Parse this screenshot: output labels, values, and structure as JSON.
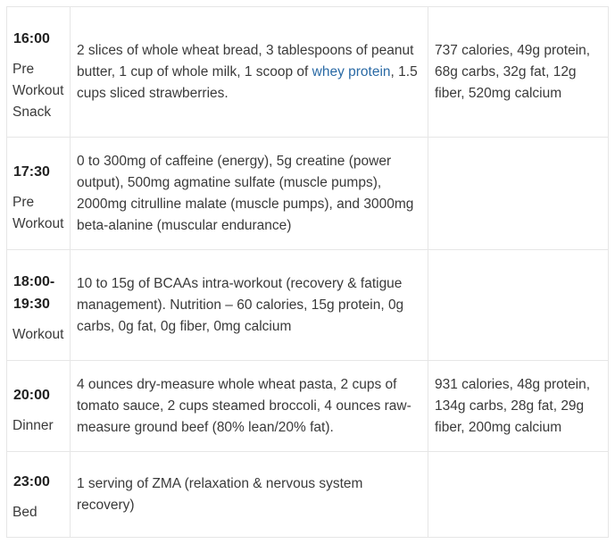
{
  "rows": [
    {
      "time": "16:00",
      "label": "Pre Workout Snack",
      "food_before": "2 slices of whole wheat bread, 3 tablespoons of peanut butter, 1 cup of whole milk, 1 scoop of ",
      "food_link": "whey protein",
      "food_after": ", 1.5 cups sliced strawberries.",
      "macros": "737 calories, 49g protein, 68g carbs, 32g fat, 12g fiber, 520mg calcium"
    },
    {
      "time": "17:30",
      "label": "Pre Workout",
      "food": "0 to 300mg of caffeine (energy), 5g creatine (power output), 500mg agmatine sulfate (muscle pumps), 2000mg citrulline malate (muscle pumps), and 3000mg beta-alanine (muscular endurance)",
      "macros": ""
    },
    {
      "time": "18:00-19:30",
      "label": "Workout",
      "food": "10 to 15g of BCAAs intra-workout (recovery & fatigue management). Nutrition – 60 calories, 15g protein, 0g carbs, 0g fat, 0g fiber, 0mg calcium",
      "macros": ""
    },
    {
      "time": "20:00",
      "label": "Dinner",
      "food": "4 ounces dry-measure whole wheat pasta, 2 cups of tomato sauce, 2 cups steamed broccoli, 4 ounces raw-measure ground beef (80% lean/20% fat).",
      "macros": "931 calories, 48g protein, 134g carbs, 28g fat, 29g fiber, 200mg calcium"
    },
    {
      "time": "23:00",
      "label": "Bed",
      "food": "1 serving of ZMA (relaxation & nervous system recovery)",
      "macros": ""
    }
  ]
}
